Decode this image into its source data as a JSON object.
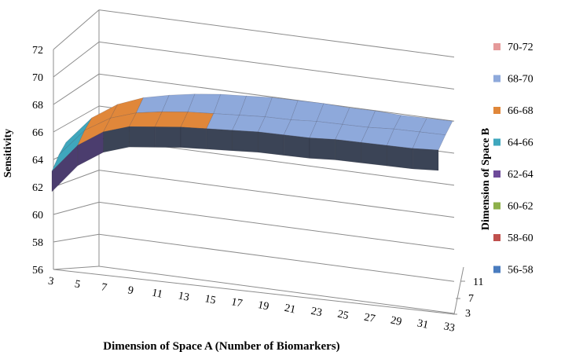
{
  "chart_data": {
    "type": "surface",
    "xlabel": "Dimension of Space A (Number of Biomarkers)",
    "ylabel": "Sensitivity",
    "zlabel": "Dimension of Space B",
    "x_ticks": [
      "3",
      "5",
      "7",
      "9",
      "11",
      "13",
      "15",
      "17",
      "19",
      "21",
      "23",
      "25",
      "27",
      "29",
      "31",
      "33"
    ],
    "y_ticks": [
      "56",
      "58",
      "60",
      "62",
      "64",
      "66",
      "68",
      "70",
      "72"
    ],
    "depth_ticks": [
      "3",
      "7",
      "11"
    ],
    "ylim": [
      56,
      72
    ],
    "grid": true,
    "legend_position": "right",
    "legend": [
      {
        "label": "70-72",
        "color": "#e59a9a"
      },
      {
        "label": "68-70",
        "color": "#8ea9db"
      },
      {
        "label": "66-68",
        "color": "#e0873a"
      },
      {
        "label": "64-66",
        "color": "#3fa7bd"
      },
      {
        "label": "62-64",
        "color": "#6e4b9a"
      },
      {
        "label": "60-62",
        "color": "#8db04a"
      },
      {
        "label": "58-60",
        "color": "#c0504d"
      },
      {
        "label": "56-58",
        "color": "#4a7cbf"
      }
    ],
    "series": [
      {
        "name": "3",
        "x": [
          3,
          5,
          7,
          9,
          11,
          13,
          15,
          17,
          19,
          21,
          23,
          25,
          27,
          29,
          31,
          33
        ],
        "values": [
          63.2,
          65.3,
          66.5,
          67.1,
          67.3,
          67.5,
          67.6,
          67.7,
          67.8,
          67.8,
          67.8,
          67.9,
          67.9,
          67.9,
          67.9,
          68.0
        ]
      },
      {
        "name": "7",
        "x": [
          3,
          5,
          7,
          9,
          11,
          13,
          15,
          17,
          19,
          21,
          23,
          25,
          27,
          29,
          31,
          33
        ],
        "values": [
          64.0,
          66.0,
          67.1,
          67.7,
          68.0,
          68.2,
          68.3,
          68.4,
          68.5,
          68.5,
          68.6,
          68.6,
          68.6,
          68.7,
          68.7,
          68.7
        ]
      },
      {
        "name": "11",
        "x": [
          3,
          5,
          7,
          9,
          11,
          13,
          15,
          17,
          19,
          21,
          23,
          25,
          27,
          29,
          31,
          33
        ],
        "values": [
          64.5,
          66.5,
          67.7,
          68.4,
          68.8,
          69.1,
          69.3,
          69.4,
          69.5,
          69.5,
          69.5,
          69.4,
          69.4,
          69.3,
          69.3,
          69.3
        ]
      }
    ]
  }
}
